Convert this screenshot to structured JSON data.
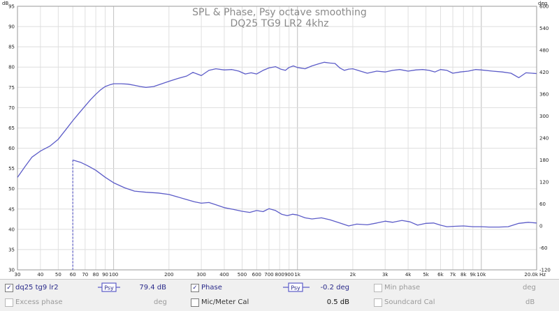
{
  "chart_data": {
    "type": "line",
    "title": "SPL & Phase, Psy octave smoothing",
    "subtitle": "DQ25 TG9 LR2 4khz",
    "xscale": "log",
    "xlim": [
      30,
      20000
    ],
    "ylim_left": [
      30,
      95
    ],
    "ylim_right": [
      -120,
      600
    ],
    "left_unit_label": "dB",
    "right_unit_label": "deg",
    "x_unit_label": "Hz",
    "x_ticks": [
      {
        "v": 30,
        "label": "30"
      },
      {
        "v": 40,
        "label": "40"
      },
      {
        "v": 50,
        "label": "50"
      },
      {
        "v": 60,
        "label": "60"
      },
      {
        "v": 70,
        "label": "70"
      },
      {
        "v": 80,
        "label": "80"
      },
      {
        "v": 90,
        "label": "90"
      },
      {
        "v": 100,
        "label": "100"
      },
      {
        "v": 200,
        "label": "200"
      },
      {
        "v": 300,
        "label": "300"
      },
      {
        "v": 400,
        "label": "400"
      },
      {
        "v": 500,
        "label": "500"
      },
      {
        "v": 600,
        "label": "600"
      },
      {
        "v": 700,
        "label": "700"
      },
      {
        "v": 800,
        "label": "800"
      },
      {
        "v": 900,
        "label": "900"
      },
      {
        "v": 1000,
        "label": "1k"
      },
      {
        "v": 2000,
        "label": "2k"
      },
      {
        "v": 3000,
        "label": "3k"
      },
      {
        "v": 4000,
        "label": "4k"
      },
      {
        "v": 5000,
        "label": "5k"
      },
      {
        "v": 6000,
        "label": "6k"
      },
      {
        "v": 7000,
        "label": "7k"
      },
      {
        "v": 8000,
        "label": "8k"
      },
      {
        "v": 9000,
        "label": "9k"
      },
      {
        "v": 10000,
        "label": "10k"
      },
      {
        "v": 20000,
        "label": "20.0k"
      }
    ],
    "y_left_ticks": [
      30,
      35,
      40,
      45,
      50,
      55,
      60,
      65,
      70,
      75,
      80,
      85,
      90,
      95
    ],
    "y_right_ticks": [
      -120,
      -60,
      0,
      60,
      120,
      180,
      240,
      300,
      360,
      420,
      480,
      540,
      600
    ],
    "grid": true,
    "series": [
      {
        "name": "dq25 tg9 lr2",
        "axis": "left",
        "color": "#5c5cc8",
        "x": [
          30,
          33,
          36,
          40,
          45,
          50,
          55,
          60,
          65,
          70,
          75,
          80,
          85,
          90,
          95,
          100,
          110,
          120,
          130,
          140,
          150,
          165,
          180,
          200,
          220,
          250,
          270,
          285,
          300,
          330,
          360,
          400,
          440,
          480,
          520,
          560,
          600,
          650,
          700,
          760,
          810,
          860,
          900,
          950,
          1000,
          1100,
          1200,
          1300,
          1400,
          1500,
          1600,
          1700,
          1800,
          1900,
          2000,
          2200,
          2400,
          2700,
          3000,
          3300,
          3600,
          4000,
          4400,
          4800,
          5200,
          5600,
          6000,
          6500,
          7000,
          7700,
          8500,
          9300,
          10000,
          11500,
          13000,
          14500,
          16000,
          17500,
          20000
        ],
        "values": [
          52.8,
          55.5,
          57.8,
          59.3,
          60.5,
          62.2,
          64.6,
          66.8,
          68.7,
          70.4,
          72.0,
          73.3,
          74.4,
          75.2,
          75.6,
          75.9,
          75.9,
          75.8,
          75.5,
          75.2,
          75.0,
          75.2,
          75.8,
          76.5,
          77.1,
          77.8,
          78.7,
          78.3,
          77.9,
          79.2,
          79.6,
          79.3,
          79.4,
          79.0,
          78.3,
          78.6,
          78.3,
          79.2,
          79.8,
          80.1,
          79.5,
          79.2,
          79.9,
          80.3,
          79.9,
          79.6,
          80.3,
          80.8,
          81.2,
          81.0,
          80.9,
          79.8,
          79.2,
          79.5,
          79.6,
          79.0,
          78.5,
          79.0,
          78.8,
          79.2,
          79.4,
          79.0,
          79.3,
          79.4,
          79.2,
          78.8,
          79.4,
          79.2,
          78.5,
          78.8,
          79.0,
          79.4,
          79.3,
          79.0,
          78.8,
          78.5,
          77.4,
          78.6,
          78.4
        ]
      },
      {
        "name": "Phase",
        "axis": "right",
        "color": "#5c5cc8",
        "x": [
          60,
          66,
          72,
          80,
          90,
          100,
          115,
          130,
          150,
          175,
          200,
          220,
          250,
          275,
          300,
          330,
          360,
          400,
          450,
          500,
          550,
          600,
          650,
          700,
          760,
          820,
          880,
          940,
          1000,
          1100,
          1200,
          1350,
          1500,
          1700,
          1900,
          2100,
          2400,
          2700,
          3000,
          3300,
          3700,
          4100,
          4500,
          5000,
          5500,
          6000,
          6500,
          7200,
          8000,
          9000,
          10000,
          11000,
          12500,
          14000,
          16000,
          18000,
          20000
        ],
        "values": [
          180,
          174,
          165,
          152,
          133,
          118,
          104,
          95,
          92,
          90,
          86,
          80,
          72,
          66,
          62,
          64,
          58,
          50,
          45,
          40,
          37,
          42,
          39,
          47,
          42,
          32,
          28,
          32,
          30,
          22,
          19,
          22,
          17,
          8,
          0,
          5,
          3,
          8,
          13,
          10,
          15,
          11,
          2,
          7,
          8,
          2,
          -2,
          -1,
          0,
          -2,
          -2,
          -3,
          -3,
          -2,
          7,
          10,
          8
        ]
      }
    ],
    "cursor_x": 60
  },
  "legend": {
    "row1": {
      "trace_name": "dq25 tg9 lr2",
      "psy_label": "Psy",
      "trace_value": "79.4 dB",
      "phase_label": "Phase",
      "phase_psy_label": "Psy",
      "phase_value": "-0.2 deg",
      "min_phase_label": "Min phase",
      "min_phase_unit": "deg"
    },
    "row2": {
      "excess_phase_label": "Excess phase",
      "excess_phase_unit": "deg",
      "mic_cal_label": "Mic/Meter Cal",
      "mic_cal_value": "0.5 dB",
      "soundcard_cal_label": "Soundcard Cal",
      "soundcard_cal_unit": "dB"
    },
    "check_mark": "✓"
  }
}
